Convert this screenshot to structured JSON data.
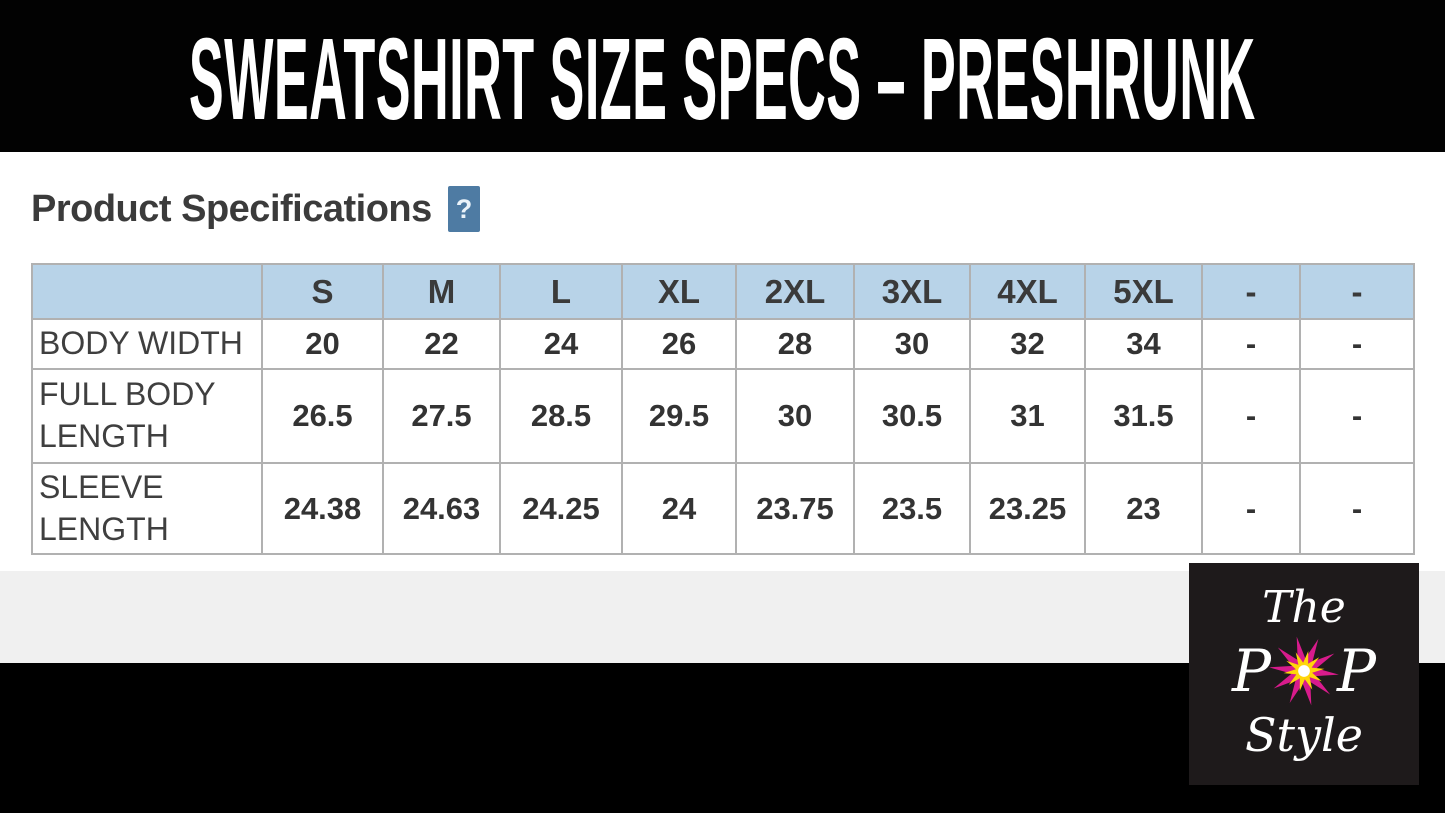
{
  "banner": {
    "title": "SWEATSHIRT SIZE SPECS – PRESHRUNK"
  },
  "section": {
    "heading": "Product Specifications",
    "help_icon": "?"
  },
  "chart_data": {
    "type": "table",
    "title": "Product Specifications",
    "columns": [
      "",
      "S",
      "M",
      "L",
      "XL",
      "2XL",
      "3XL",
      "4XL",
      "5XL",
      "-",
      "-"
    ],
    "rows": [
      {
        "label": "BODY WIDTH",
        "values": [
          "20",
          "22",
          "24",
          "26",
          "28",
          "30",
          "32",
          "34",
          "-",
          "-"
        ]
      },
      {
        "label": "FULL BODY LENGTH",
        "values": [
          "26.5",
          "27.5",
          "28.5",
          "29.5",
          "30",
          "30.5",
          "31",
          "31.5",
          "-",
          "-"
        ]
      },
      {
        "label": "SLEEVE LENGTH",
        "values": [
          "24.38",
          "24.63",
          "24.25",
          "24",
          "23.75",
          "23.5",
          "23.25",
          "23",
          "-",
          "-"
        ]
      }
    ]
  },
  "logo": {
    "line1": "The",
    "p_left": "P",
    "p_right": "P",
    "line3": "Style",
    "star_icon": "starburst-icon"
  },
  "colors": {
    "banner_bg": "#020202",
    "table_header_bg": "#b8d3e8",
    "table_border": "#b1b1b1",
    "help_badge_bg": "#4e7ba3",
    "gray_band": "#f0f0f0",
    "logo_bg": "#1e1a1b",
    "star_magenta": "#d81b8c",
    "star_yellow": "#ffd60a",
    "star_core": "#ffffff"
  }
}
